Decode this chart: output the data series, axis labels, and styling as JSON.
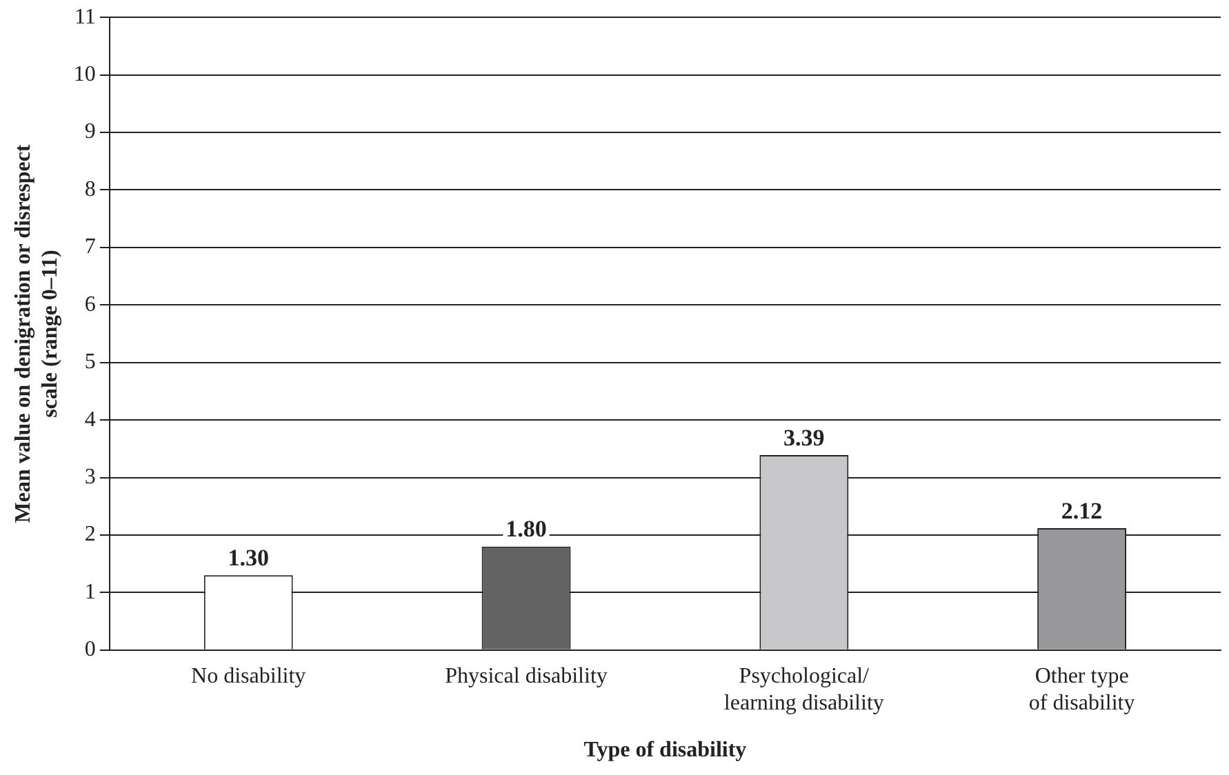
{
  "chart_data": {
    "type": "bar",
    "xlabel": "Type of disability",
    "ylabel": "Mean value on denigration or disrespect\nscale (range 0–11)",
    "categories": [
      "No disability",
      "Physical disability",
      "Psychological/\nlearning disability",
      "Other type\nof disability"
    ],
    "values": [
      1.3,
      1.8,
      3.39,
      2.12
    ],
    "colors": [
      "#ffffff",
      "#636363",
      "#c8c8ca",
      "#98989b"
    ],
    "ylim": [
      0,
      11
    ],
    "yticks": [
      0,
      1,
      2,
      3,
      4,
      5,
      6,
      7,
      8,
      9,
      10,
      11
    ],
    "value_labels": [
      "1.30",
      "1.80",
      "3.39",
      "2.12"
    ],
    "grid": "y",
    "legend": false
  }
}
